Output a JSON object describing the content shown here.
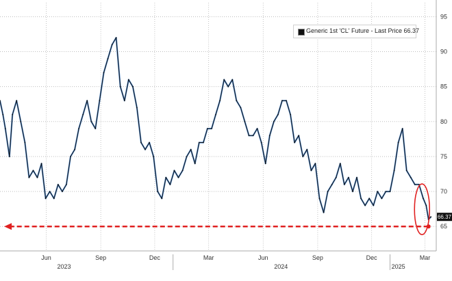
{
  "chart_data": {
    "type": "line",
    "title": "",
    "xlabel": "",
    "ylabel": "",
    "ylim": [
      61.5,
      97
    ],
    "y_ticks": [
      65,
      70,
      75,
      80,
      85,
      90,
      95
    ],
    "y_tick_labels": [
      "65",
      "70",
      "75",
      "80",
      "85",
      "90",
      "95"
    ],
    "x_tick_labels": [
      "Jun",
      "Sep",
      "Dec",
      "Mar",
      "Jun",
      "Sep",
      "Dec",
      "Mar"
    ],
    "x_tick_dates": [
      "2023-06-01",
      "2023-09-01",
      "2023-12-01",
      "2024-03-01",
      "2024-06-01",
      "2024-09-01",
      "2024-12-01",
      "2025-03-01"
    ],
    "year_labels": [
      "2023",
      "2024",
      "2025"
    ],
    "year_label_dates": [
      "2023-07-01",
      "2024-07-01",
      "2025-01-15"
    ],
    "x_range": [
      "2023-03-15",
      "2025-03-20"
    ],
    "grid": true,
    "legend_position": "top-right",
    "series": [
      {
        "name": "Generic 1st 'CL' Future - Last Price 66.37",
        "color": "#111111",
        "dates": [
          "2023-03-15",
          "2023-03-20",
          "2023-03-24",
          "2023-03-31",
          "2023-04-05",
          "2023-04-12",
          "2023-04-19",
          "2023-04-26",
          "2023-05-03",
          "2023-05-10",
          "2023-05-17",
          "2023-05-24",
          "2023-05-31",
          "2023-06-07",
          "2023-06-14",
          "2023-06-21",
          "2023-06-28",
          "2023-07-05",
          "2023-07-12",
          "2023-07-19",
          "2023-07-26",
          "2023-08-02",
          "2023-08-09",
          "2023-08-16",
          "2023-08-23",
          "2023-08-30",
          "2023-09-06",
          "2023-09-13",
          "2023-09-20",
          "2023-09-27",
          "2023-10-04",
          "2023-10-11",
          "2023-10-18",
          "2023-10-25",
          "2023-11-01",
          "2023-11-08",
          "2023-11-15",
          "2023-11-22",
          "2023-11-29",
          "2023-12-06",
          "2023-12-13",
          "2023-12-20",
          "2023-12-27",
          "2024-01-03",
          "2024-01-10",
          "2024-01-17",
          "2024-01-24",
          "2024-01-31",
          "2024-02-07",
          "2024-02-14",
          "2024-02-21",
          "2024-02-28",
          "2024-03-06",
          "2024-03-13",
          "2024-03-20",
          "2024-03-27",
          "2024-04-03",
          "2024-04-10",
          "2024-04-17",
          "2024-04-24",
          "2024-05-01",
          "2024-05-08",
          "2024-05-15",
          "2024-05-22",
          "2024-05-29",
          "2024-06-05",
          "2024-06-12",
          "2024-06-19",
          "2024-06-26",
          "2024-07-03",
          "2024-07-10",
          "2024-07-17",
          "2024-07-24",
          "2024-07-31",
          "2024-08-07",
          "2024-08-14",
          "2024-08-21",
          "2024-08-28",
          "2024-09-04",
          "2024-09-11",
          "2024-09-18",
          "2024-09-25",
          "2024-10-02",
          "2024-10-09",
          "2024-10-16",
          "2024-10-23",
          "2024-10-30",
          "2024-11-06",
          "2024-11-13",
          "2024-11-20",
          "2024-11-27",
          "2024-12-04",
          "2024-12-11",
          "2024-12-18",
          "2024-12-25",
          "2025-01-01",
          "2025-01-08",
          "2025-01-15",
          "2025-01-22",
          "2025-01-29",
          "2025-02-05",
          "2025-02-12",
          "2025-02-19",
          "2025-02-26",
          "2025-03-03",
          "2025-03-07",
          "2025-03-11"
        ],
        "values": [
          83,
          81,
          79,
          75,
          81,
          83,
          80,
          77,
          72,
          73,
          72,
          74,
          69,
          70,
          69,
          71,
          70,
          71,
          75,
          76,
          79,
          81,
          83,
          80,
          79,
          83,
          87,
          89,
          91,
          92,
          85,
          83,
          86,
          85,
          82,
          77,
          76,
          77,
          75,
          70,
          69,
          72,
          71,
          73,
          72,
          73,
          75,
          76,
          74,
          77,
          77,
          79,
          79,
          81,
          83,
          86,
          85,
          86,
          83,
          82,
          80,
          78,
          78,
          79,
          77,
          74,
          78,
          80,
          81,
          83,
          83,
          81,
          77,
          78,
          75,
          76,
          73,
          74,
          69,
          67,
          70,
          71,
          72,
          74,
          71,
          72,
          70,
          72,
          69,
          68,
          69,
          68,
          70,
          69,
          70,
          70,
          73,
          77,
          79,
          73,
          72,
          71,
          71,
          69,
          68,
          66,
          66.37
        ]
      }
    ],
    "last_price": 66.37,
    "last_price_label": "66.37",
    "reference_level": 65,
    "reference_arrow_from": "2025-03-07",
    "reference_arrow_to": "2023-03-22",
    "highlight_ellipse_center": "2025-02-24"
  },
  "colors": {
    "price_line": "#111111",
    "price_accent": "#3a7fd0",
    "arrow": "#e02020",
    "grid": "#b4b4b4",
    "axis_text": "#333333",
    "last_price_bg": "#111111",
    "last_price_text": "#ffffff"
  }
}
